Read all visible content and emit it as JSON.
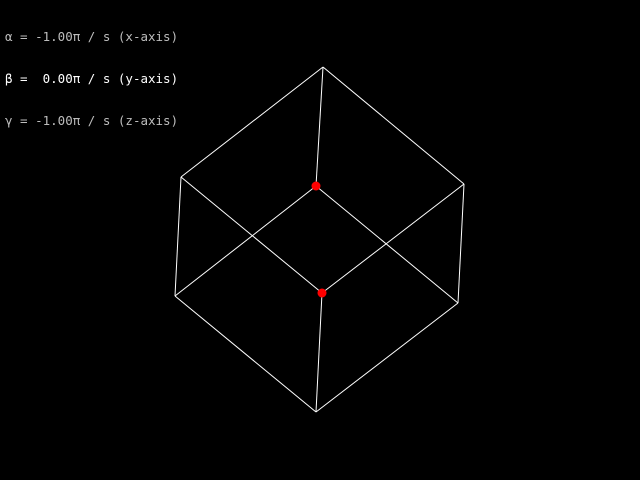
{
  "readouts": [
    {
      "symbol": "α",
      "value": "-1.00π",
      "unit": "/ s",
      "axis": "(x-axis)",
      "color": "#bdbdbd"
    },
    {
      "symbol": "β",
      "value": " 0.00π",
      "unit": "/ s",
      "axis": "(y-axis)",
      "color": "#ffffff"
    },
    {
      "symbol": "γ",
      "value": "-1.00π",
      "unit": "/ s",
      "axis": "(z-axis)",
      "color": "#bdbdbd"
    }
  ],
  "scene": {
    "edge_color": "#ffffff",
    "vertex_marker_color": "#ff0000",
    "edge_count": 12,
    "highlighted_vertices": 2
  }
}
